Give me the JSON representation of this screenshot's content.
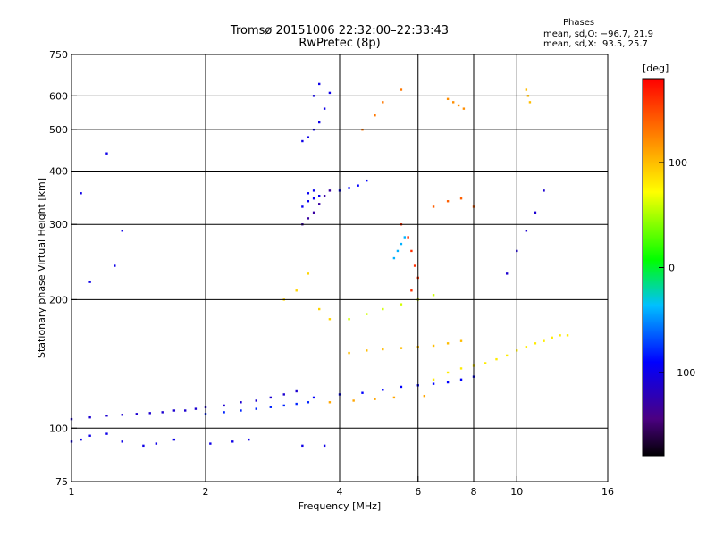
{
  "header": {
    "title": "Tromsø 20151006 22:32:00–22:33:43",
    "subtitle": "RwPretec (8p)"
  },
  "phases_box": {
    "heading": "Phases",
    "line_o": "mean, sd,O: −96.7, 21.9",
    "line_x": "mean, sd,X:  93.5, 25.7"
  },
  "colorbar": {
    "unit": "[deg]",
    "ticks": [
      {
        "value": 100,
        "label": "100"
      },
      {
        "value": 0,
        "label": "0"
      },
      {
        "value": -100,
        "label": "−100"
      }
    ],
    "range": [
      -180,
      180
    ]
  },
  "chart_data": {
    "type": "scatter",
    "title": "Tromsø 20151006 22:32:00–22:33:43",
    "subtitle": "RwPretec (8p)",
    "xlabel": "Frequency [MHz]",
    "ylabel": "Stationary phase Virtual Height [km]",
    "x_scale": "log",
    "y_scale": "log",
    "xlim": [
      1,
      16
    ],
    "ylim": [
      75,
      750
    ],
    "xticks": [
      1,
      2,
      4,
      6,
      8,
      10,
      16
    ],
    "yticks": [
      75,
      100,
      200,
      300,
      400,
      500,
      600,
      750
    ],
    "x_gridlines": [
      2,
      4,
      6,
      8,
      10
    ],
    "y_gridlines": [
      100,
      200,
      300,
      400,
      500,
      600
    ],
    "color_variable": "phase [deg]",
    "series": [
      {
        "points": [
          [
            1.0,
            93
          ],
          [
            1.05,
            94
          ],
          [
            1.1,
            96
          ],
          [
            1.2,
            97
          ],
          [
            1.3,
            93
          ],
          [
            1.45,
            91
          ],
          [
            1.55,
            92
          ],
          [
            1.7,
            94
          ],
          [
            2.05,
            92
          ],
          [
            2.3,
            93
          ],
          [
            2.5,
            94
          ],
          [
            3.3,
            91
          ],
          [
            3.7,
            91
          ]
        ],
        "phase": -100
      },
      {
        "points": [
          [
            1.0,
            105
          ],
          [
            1.1,
            106
          ],
          [
            1.2,
            107
          ],
          [
            1.3,
            107.5
          ],
          [
            1.4,
            108
          ],
          [
            1.5,
            108.5
          ],
          [
            1.6,
            109
          ],
          [
            1.7,
            110
          ],
          [
            1.8,
            110
          ],
          [
            1.9,
            111
          ],
          [
            2.0,
            112
          ],
          [
            2.2,
            113
          ],
          [
            2.4,
            115
          ],
          [
            2.6,
            116
          ],
          [
            2.8,
            118
          ],
          [
            3.0,
            120
          ],
          [
            3.2,
            122
          ]
        ],
        "phase": -110
      },
      {
        "points": [
          [
            2.0,
            108
          ],
          [
            2.2,
            109
          ],
          [
            2.4,
            110
          ],
          [
            2.6,
            111
          ],
          [
            2.8,
            112
          ],
          [
            3.0,
            113
          ],
          [
            3.2,
            114
          ],
          [
            3.4,
            115
          ]
        ],
        "phase": -80
      },
      {
        "points": [
          [
            3.5,
            118
          ],
          [
            4.0,
            120
          ],
          [
            4.5,
            121
          ],
          [
            5.0,
            123
          ],
          [
            5.5,
            125
          ],
          [
            6.0,
            126
          ],
          [
            6.5,
            127
          ],
          [
            7.0,
            128
          ],
          [
            7.5,
            130
          ],
          [
            8.0,
            132
          ]
        ],
        "phase": -90
      },
      {
        "points": [
          [
            3.8,
            115
          ],
          [
            4.3,
            116
          ],
          [
            4.8,
            117
          ],
          [
            5.3,
            118
          ],
          [
            6.2,
            119
          ]
        ],
        "phase": 110
      },
      {
        "points": [
          [
            4.2,
            150
          ],
          [
            4.6,
            152
          ],
          [
            5.0,
            153
          ],
          [
            5.5,
            154
          ],
          [
            6.0,
            155
          ],
          [
            6.5,
            156
          ],
          [
            7.0,
            158
          ],
          [
            7.5,
            160
          ]
        ],
        "phase": 100
      },
      {
        "points": [
          [
            6.5,
            130
          ],
          [
            7.0,
            135
          ],
          [
            7.5,
            138
          ],
          [
            8.0,
            140
          ],
          [
            8.5,
            142
          ],
          [
            9.0,
            145
          ],
          [
            9.5,
            148
          ],
          [
            10.0,
            152
          ],
          [
            10.5,
            155
          ],
          [
            11.0,
            158
          ],
          [
            11.5,
            160
          ],
          [
            12.0,
            163
          ],
          [
            12.5,
            165
          ],
          [
            13.0,
            165
          ]
        ],
        "phase": 80
      },
      {
        "points": [
          [
            3.3,
            300
          ],
          [
            3.4,
            310
          ],
          [
            3.5,
            320
          ],
          [
            3.6,
            335
          ],
          [
            3.7,
            350
          ],
          [
            3.8,
            360
          ]
        ],
        "phase": -130
      },
      {
        "points": [
          [
            3.3,
            330
          ],
          [
            3.4,
            340
          ],
          [
            3.5,
            345
          ],
          [
            3.6,
            350
          ],
          [
            3.5,
            360
          ],
          [
            3.4,
            355
          ]
        ],
        "phase": -95
      },
      {
        "points": [
          [
            3.3,
            470
          ],
          [
            3.4,
            480
          ],
          [
            3.5,
            500
          ],
          [
            3.6,
            520
          ],
          [
            3.7,
            560
          ],
          [
            3.8,
            610
          ],
          [
            3.6,
            640
          ],
          [
            3.5,
            600
          ]
        ],
        "phase": -100
      },
      {
        "points": [
          [
            4.0,
            360
          ],
          [
            4.2,
            365
          ],
          [
            4.4,
            370
          ],
          [
            4.6,
            380
          ]
        ],
        "phase": -90
      },
      {
        "points": [
          [
            4.5,
            500
          ],
          [
            4.8,
            540
          ],
          [
            5.0,
            580
          ],
          [
            5.5,
            620
          ]
        ],
        "phase": 130
      },
      {
        "points": [
          [
            5.5,
            300
          ],
          [
            5.7,
            280
          ],
          [
            5.8,
            260
          ],
          [
            5.9,
            240
          ],
          [
            6.0,
            225
          ],
          [
            5.8,
            210
          ]
        ],
        "phase": 160
      },
      {
        "points": [
          [
            5.3,
            250
          ],
          [
            5.4,
            260
          ],
          [
            5.5,
            270
          ],
          [
            5.6,
            280
          ]
        ],
        "phase": -40
      },
      {
        "points": [
          [
            6.5,
            330
          ],
          [
            7.0,
            340
          ],
          [
            7.5,
            345
          ],
          [
            8.0,
            330
          ]
        ],
        "phase": 140
      },
      {
        "points": [
          [
            7.0,
            590
          ],
          [
            7.2,
            580
          ],
          [
            7.4,
            570
          ],
          [
            7.6,
            560
          ]
        ],
        "phase": 120
      },
      {
        "points": [
          [
            9.5,
            230
          ],
          [
            10.0,
            260
          ],
          [
            10.5,
            290
          ],
          [
            11.0,
            320
          ],
          [
            11.5,
            360
          ]
        ],
        "phase": -110
      },
      {
        "points": [
          [
            10.5,
            620
          ],
          [
            10.6,
            600
          ],
          [
            10.7,
            580
          ]
        ],
        "phase": 100
      },
      {
        "points": [
          [
            3.0,
            200
          ],
          [
            3.2,
            210
          ],
          [
            3.4,
            230
          ],
          [
            3.6,
            190
          ],
          [
            3.8,
            180
          ]
        ],
        "phase": 90
      },
      {
        "points": [
          [
            4.2,
            180
          ],
          [
            4.6,
            185
          ],
          [
            5.0,
            190
          ],
          [
            5.5,
            195
          ],
          [
            6.0,
            200
          ],
          [
            6.5,
            205
          ]
        ],
        "phase": 60
      },
      {
        "points": [
          [
            1.2,
            440
          ],
          [
            1.3,
            290
          ],
          [
            1.25,
            240
          ],
          [
            1.1,
            220
          ],
          [
            1.05,
            355
          ]
        ],
        "phase": -100
      }
    ]
  }
}
